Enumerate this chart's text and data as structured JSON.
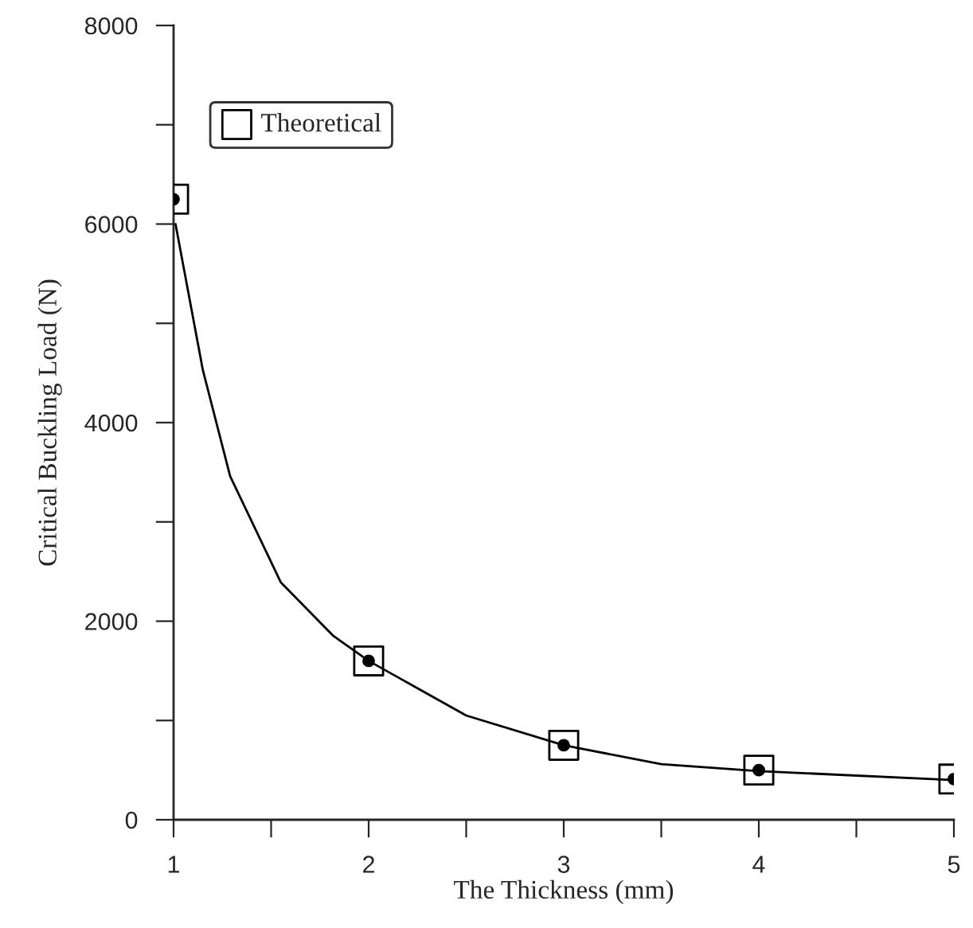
{
  "chart_data": {
    "type": "scatter",
    "xlabel": "The Thickness (mm)",
    "ylabel": "Critical Buckling Load (N)",
    "x": [
      1,
      2,
      3,
      4,
      5
    ],
    "series": [
      {
        "marker": "circle",
        "color": "#000000",
        "values": [
          6250,
          1600,
          750,
          500,
          410
        ]
      },
      {
        "name": "Theoretical",
        "marker": "square",
        "color": "#000000",
        "values": [
          6250,
          1600,
          750,
          500,
          410
        ]
      },
      {
        "type": "line",
        "marker": "none",
        "color": "#000000",
        "x": [
          1.01,
          1.15,
          1.29,
          1.55,
          1.82,
          2,
          2.5,
          3,
          3.5,
          4,
          5
        ],
        "values": [
          6000,
          4530,
          3460,
          2390,
          1850,
          1600,
          1050,
          750,
          560,
          490,
          400
        ]
      }
    ],
    "xlim": [
      1,
      5
    ],
    "ylim": [
      0,
      8000
    ],
    "xticks": [
      1,
      {
        "value": 1.5,
        "label": null
      },
      2,
      {
        "value": 2.5,
        "label": null
      },
      3,
      {
        "value": 3.5,
        "label": null
      },
      4,
      {
        "value": 4.5,
        "label": null
      },
      5
    ],
    "yticks": [
      0,
      {
        "value": 1000,
        "label": null
      },
      2000,
      {
        "value": 3000,
        "label": null
      },
      4000,
      {
        "value": 5000,
        "label": null
      },
      6000,
      {
        "value": 7000,
        "label": null
      },
      8000
    ],
    "grid": false,
    "legend": "top left"
  }
}
